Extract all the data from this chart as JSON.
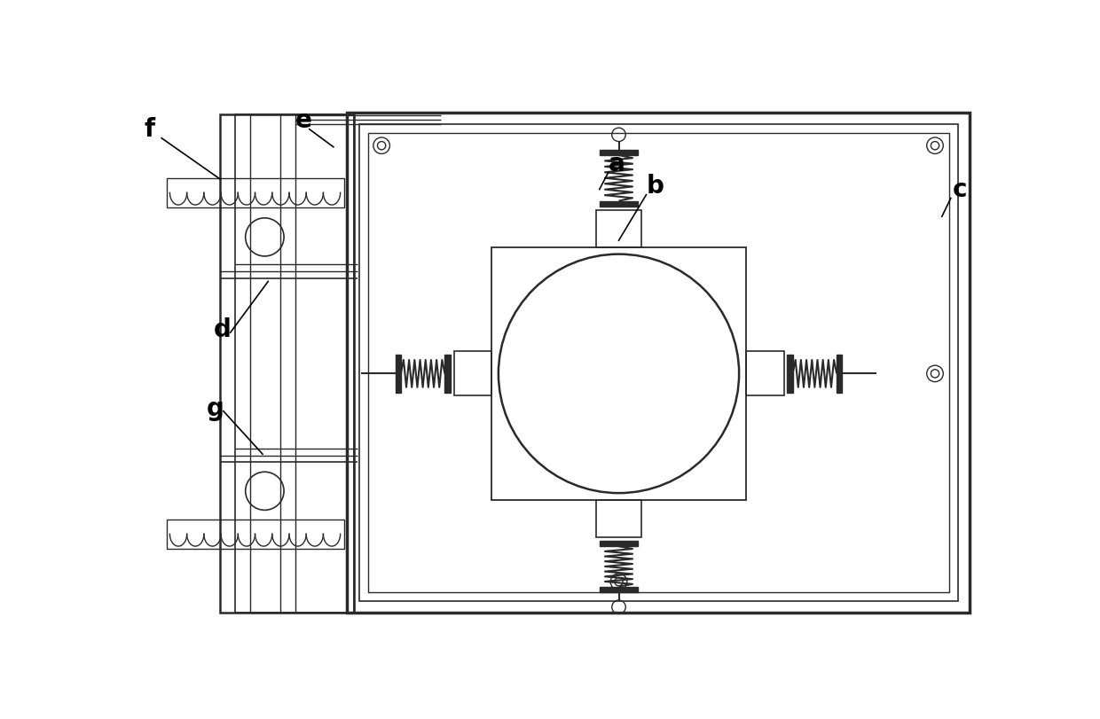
{
  "bg_color": "#ffffff",
  "line_color": "#2a2a2a",
  "line_width": 1.5,
  "label_fontsize": 20,
  "figsize": [
    12.4,
    8.12
  ],
  "dpi": 100,
  "xlim": [
    0,
    12.4
  ],
  "ylim": [
    0,
    8.12
  ]
}
